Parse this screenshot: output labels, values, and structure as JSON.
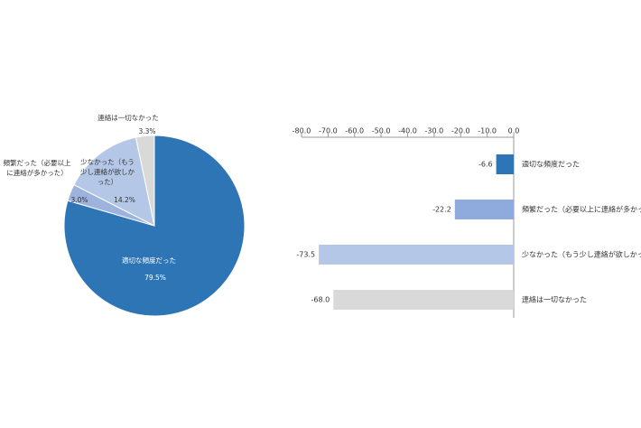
{
  "chart_data": [
    {
      "type": "pie",
      "categories": [
        "適切な頻度だった",
        "頻繁だった（必要以上に連絡が多かった）",
        "少なかった（もう少し連絡が欲しかった）",
        "連絡は一切なかった"
      ],
      "values": [
        79.5,
        3.0,
        14.2,
        3.3
      ],
      "value_labels": [
        "79.5%",
        "3.0%",
        "14.2%",
        "3.3%"
      ],
      "colors": [
        "#2e75b6",
        "#9db3dd",
        "#b4c7e7",
        "#d9d9d9"
      ]
    },
    {
      "type": "bar",
      "orientation": "horizontal",
      "categories": [
        "適切な頻度だった",
        "頻繁だった（必要以上に連絡が多かった）",
        "少なかった（もう少し連絡が欲しかった）",
        "連絡は一切なかった"
      ],
      "values": [
        -6.6,
        -22.2,
        -73.5,
        -68.0
      ],
      "value_labels": [
        "-6.6",
        "-22.2",
        "-73.5",
        "-68.0"
      ],
      "colors": [
        "#2e75b6",
        "#8faadc",
        "#b4c7e7",
        "#d9d9d9"
      ],
      "xlim": [
        -80,
        0
      ],
      "xticks": [
        {
          "value": -80,
          "label": "-80.0"
        },
        {
          "value": -70,
          "label": "-70.0"
        },
        {
          "value": -60,
          "label": "-60.0"
        },
        {
          "value": -50,
          "label": "-50.0"
        },
        {
          "value": -40,
          "label": "-40.0"
        },
        {
          "value": -30,
          "label": "-30.0"
        },
        {
          "value": -20,
          "label": "-20.0"
        },
        {
          "value": -10,
          "label": "-10.0"
        },
        {
          "value": 0,
          "label": "0.0"
        }
      ]
    }
  ]
}
